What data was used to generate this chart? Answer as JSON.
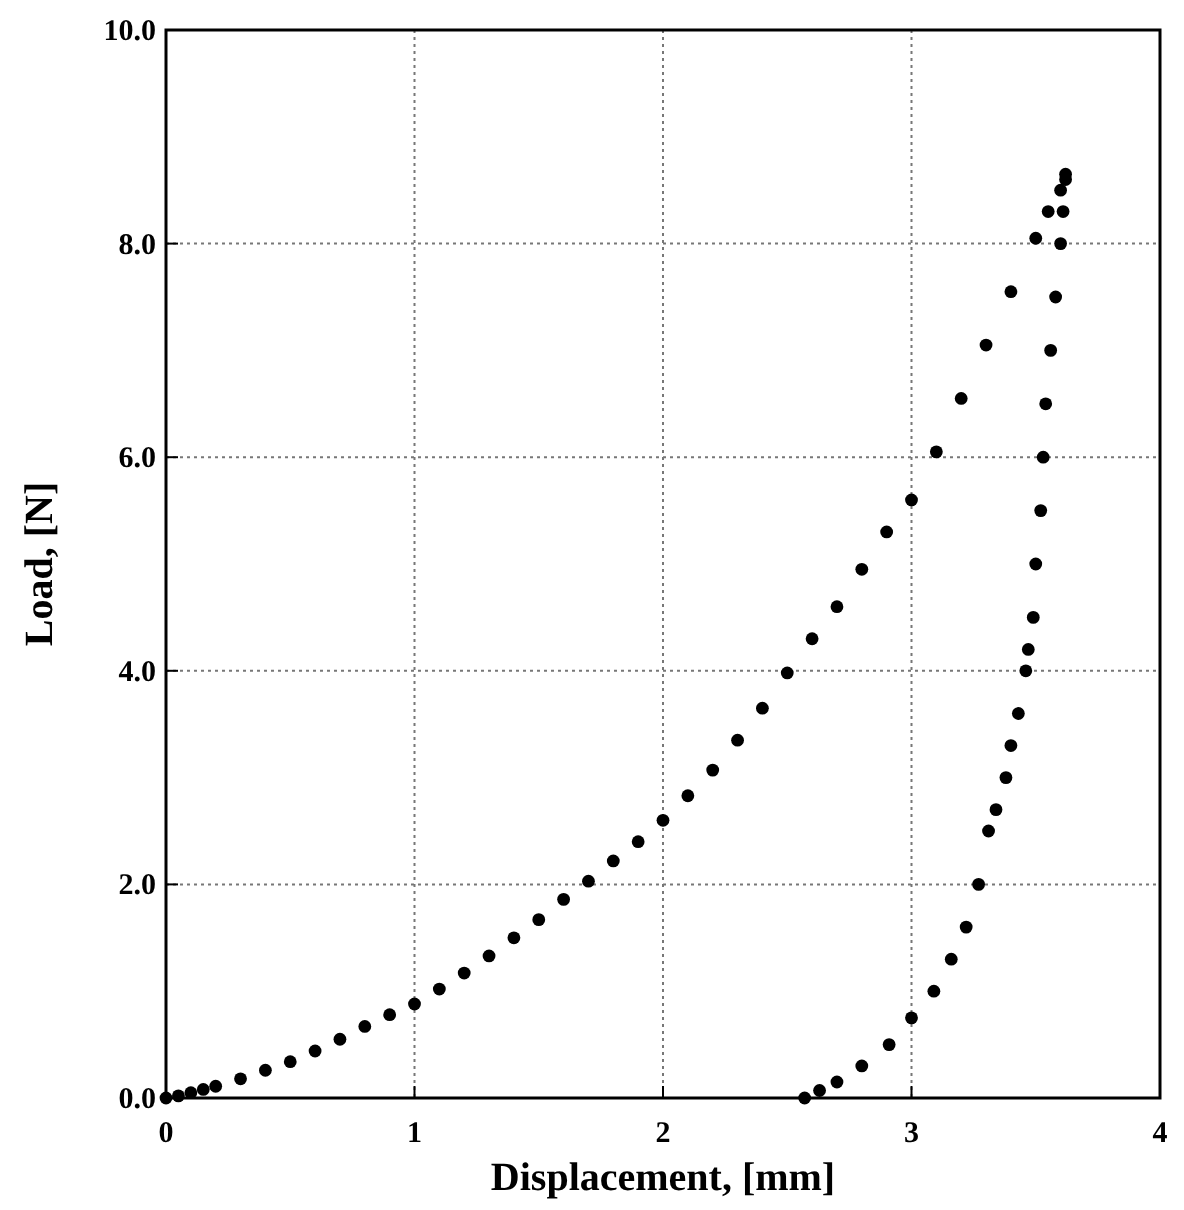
{
  "chart_data": {
    "type": "scatter",
    "xlabel": "Displacement, [mm]",
    "ylabel": "Load, [N]",
    "xlim": [
      0,
      4
    ],
    "ylim": [
      0,
      10
    ],
    "xticks": [
      0,
      1,
      2,
      3,
      4
    ],
    "yticks": [
      {
        "value": 0,
        "label": "0.0"
      },
      {
        "value": 2,
        "label": "2.0"
      },
      {
        "value": 4,
        "label": "4.0"
      },
      {
        "value": 6,
        "label": "6.0"
      },
      {
        "value": 8,
        "label": "8.0"
      },
      {
        "value": 10,
        "label": "10.0"
      }
    ],
    "grid": true,
    "marker": "circle",
    "series": [
      {
        "color": "#000000",
        "x": [
          0,
          0.05,
          0.1,
          0.15,
          0.2,
          0.3,
          0.4,
          0.5,
          0.6,
          0.7,
          0.8,
          0.9,
          1.0,
          1.1,
          1.2,
          1.3,
          1.4,
          1.5,
          1.6,
          1.7,
          1.8,
          1.9,
          2.0,
          2.1,
          2.2,
          2.3,
          2.4,
          2.5,
          2.6,
          2.7,
          2.8,
          2.9,
          3.0,
          3.1,
          3.2,
          3.3,
          3.4,
          3.5,
          3.55,
          3.6,
          3.62
        ],
        "values": [
          0,
          0.02,
          0.05,
          0.08,
          0.11,
          0.18,
          0.26,
          0.34,
          0.44,
          0.55,
          0.67,
          0.78,
          0.88,
          1.02,
          1.17,
          1.33,
          1.5,
          1.67,
          1.86,
          2.03,
          2.22,
          2.4,
          2.6,
          2.83,
          3.07,
          3.35,
          3.65,
          3.98,
          4.3,
          4.6,
          4.95,
          5.3,
          5.6,
          6.05,
          6.55,
          7.05,
          7.55,
          8.05,
          8.3,
          8.5,
          8.65
        ]
      },
      {
        "color": "#000000",
        "x": [
          3.62,
          3.61,
          3.6,
          3.58,
          3.56,
          3.54,
          3.53,
          3.52,
          3.5,
          3.49,
          3.47,
          3.46,
          3.43,
          3.4,
          3.38,
          3.34,
          3.31,
          3.27,
          3.22,
          3.16,
          3.09,
          3.0,
          2.91,
          2.8,
          2.7,
          2.63,
          2.57
        ],
        "values": [
          8.6,
          8.3,
          8.0,
          7.5,
          7.0,
          6.5,
          6.0,
          5.5,
          5.0,
          4.5,
          4.2,
          4.0,
          3.6,
          3.3,
          3.0,
          2.7,
          2.5,
          2.0,
          1.6,
          1.3,
          1.0,
          0.75,
          0.5,
          0.3,
          0.15,
          0.07,
          0
        ]
      }
    ]
  }
}
